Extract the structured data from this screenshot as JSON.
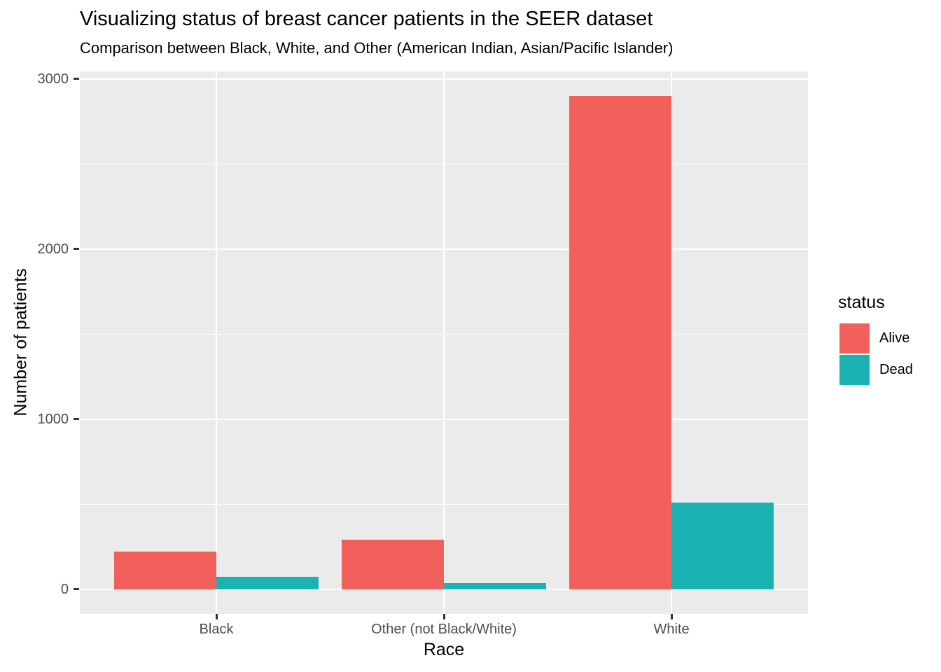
{
  "chart_data": {
    "type": "bar",
    "grouped": "dodge",
    "title": "Visualizing status of breast cancer patients in the SEER dataset",
    "subtitle": "Comparison between Black, White, and Other (American Indian, Asian/Pacific Islander)",
    "xlabel": "Race",
    "ylabel": "Number of patients",
    "categories": [
      "Black",
      "Other (not Black/White)",
      "White"
    ],
    "series": [
      {
        "name": "Alive",
        "color": "#F2605C",
        "values": [
          220,
          290,
          2900
        ]
      },
      {
        "name": "Dead",
        "color": "#1AB2B2",
        "values": [
          75,
          35,
          510
        ]
      }
    ],
    "y_ticks": [
      0,
      1000,
      2000,
      3000
    ],
    "y_minor_ticks": [
      500,
      1500,
      2500
    ],
    "ylim": [
      -145,
      3045
    ],
    "legend": {
      "title": "status",
      "position": "right"
    },
    "colors": {
      "panel_bg": "#EBEBEB",
      "grid": "#FFFFFF",
      "tick_text": "#4D4D4D",
      "tick_mark": "#333333"
    },
    "grid": "on"
  }
}
